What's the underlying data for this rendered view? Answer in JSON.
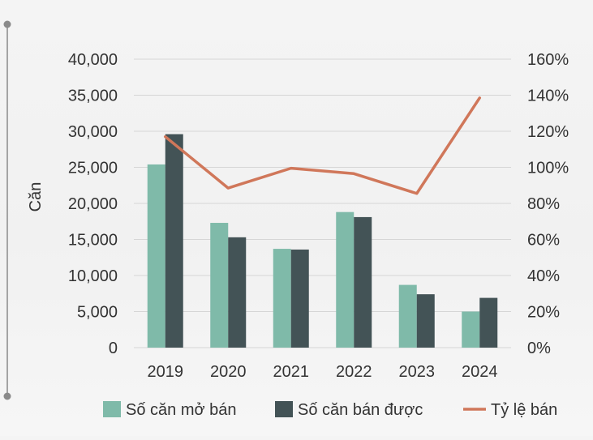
{
  "colors": {
    "opened": "#7fbaa9",
    "sold": "#435356",
    "ratio": "#d0775a",
    "grid": "#d6d6d6",
    "side_rule": "#8a8a8a"
  },
  "chart_data": {
    "type": "bar",
    "categories": [
      "2019",
      "2020",
      "2021",
      "2022",
      "2023",
      "2024"
    ],
    "series": [
      {
        "name": "Số căn mở bán",
        "type": "bar",
        "axis": "left",
        "values": [
          25400,
          17300,
          13700,
          18800,
          8700,
          5000
        ]
      },
      {
        "name": "Số căn bán được",
        "type": "bar",
        "axis": "left",
        "values": [
          29600,
          15300,
          13600,
          18100,
          7400,
          6900
        ]
      },
      {
        "name": "Tỷ lệ bán",
        "type": "line",
        "axis": "right",
        "values": [
          1.17,
          0.885,
          0.995,
          0.965,
          0.855,
          1.385
        ]
      }
    ],
    "ylabel": "Căn",
    "ylim": [
      0,
      40000
    ],
    "yticks": [
      "40,000",
      "35,000",
      "30,000",
      "25,000",
      "20,000",
      "15,000",
      "10,000",
      "5,000",
      "0"
    ],
    "y2lim": [
      0,
      1.6
    ],
    "y2ticks": [
      "160%",
      "140%",
      "120%",
      "100%",
      "80%",
      "60%",
      "40%",
      "20%",
      "0%"
    ],
    "grid": true,
    "legend_position": "bottom"
  }
}
